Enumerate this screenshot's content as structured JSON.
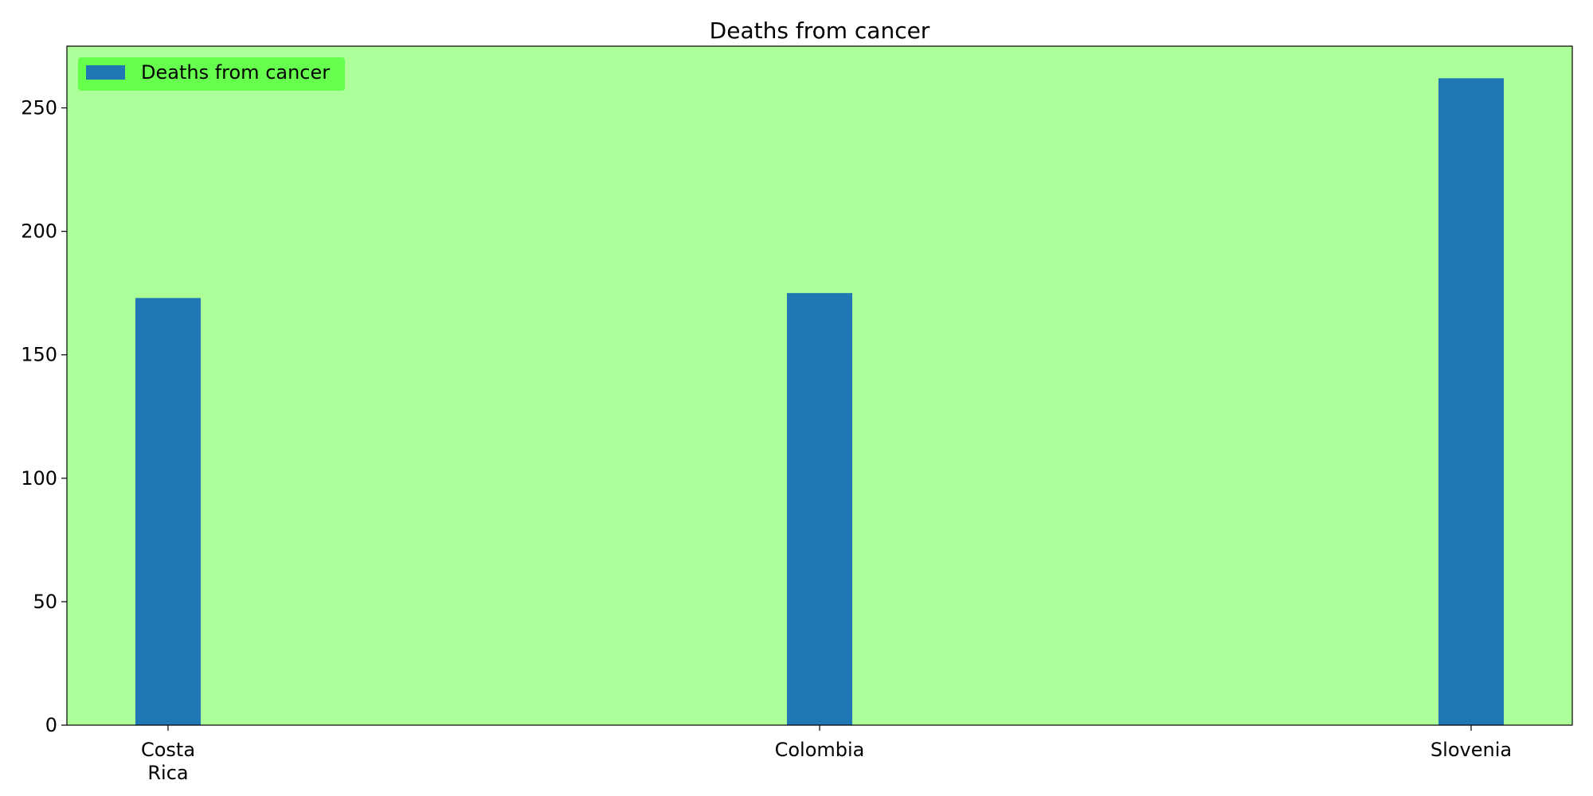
{
  "chart_data": {
    "type": "bar",
    "title": "Deaths from cancer",
    "xlabel": "",
    "ylabel": "",
    "categories": [
      [
        "Costa",
        "Rica"
      ],
      [
        "Colombia"
      ],
      [
        "Slovenia"
      ]
    ],
    "series": [
      {
        "name": "Deaths from cancer",
        "values": [
          173,
          175,
          262
        ]
      }
    ],
    "ylim": [
      0,
      275
    ],
    "yticks": [
      0,
      50,
      100,
      150,
      200,
      250
    ],
    "grid": false,
    "legend_position": "top-left",
    "colors": {
      "bar": "#1f77b4",
      "plot_background": "#adff99",
      "legend_background": "#66ff4d",
      "figure_background": "#ffffff"
    }
  }
}
